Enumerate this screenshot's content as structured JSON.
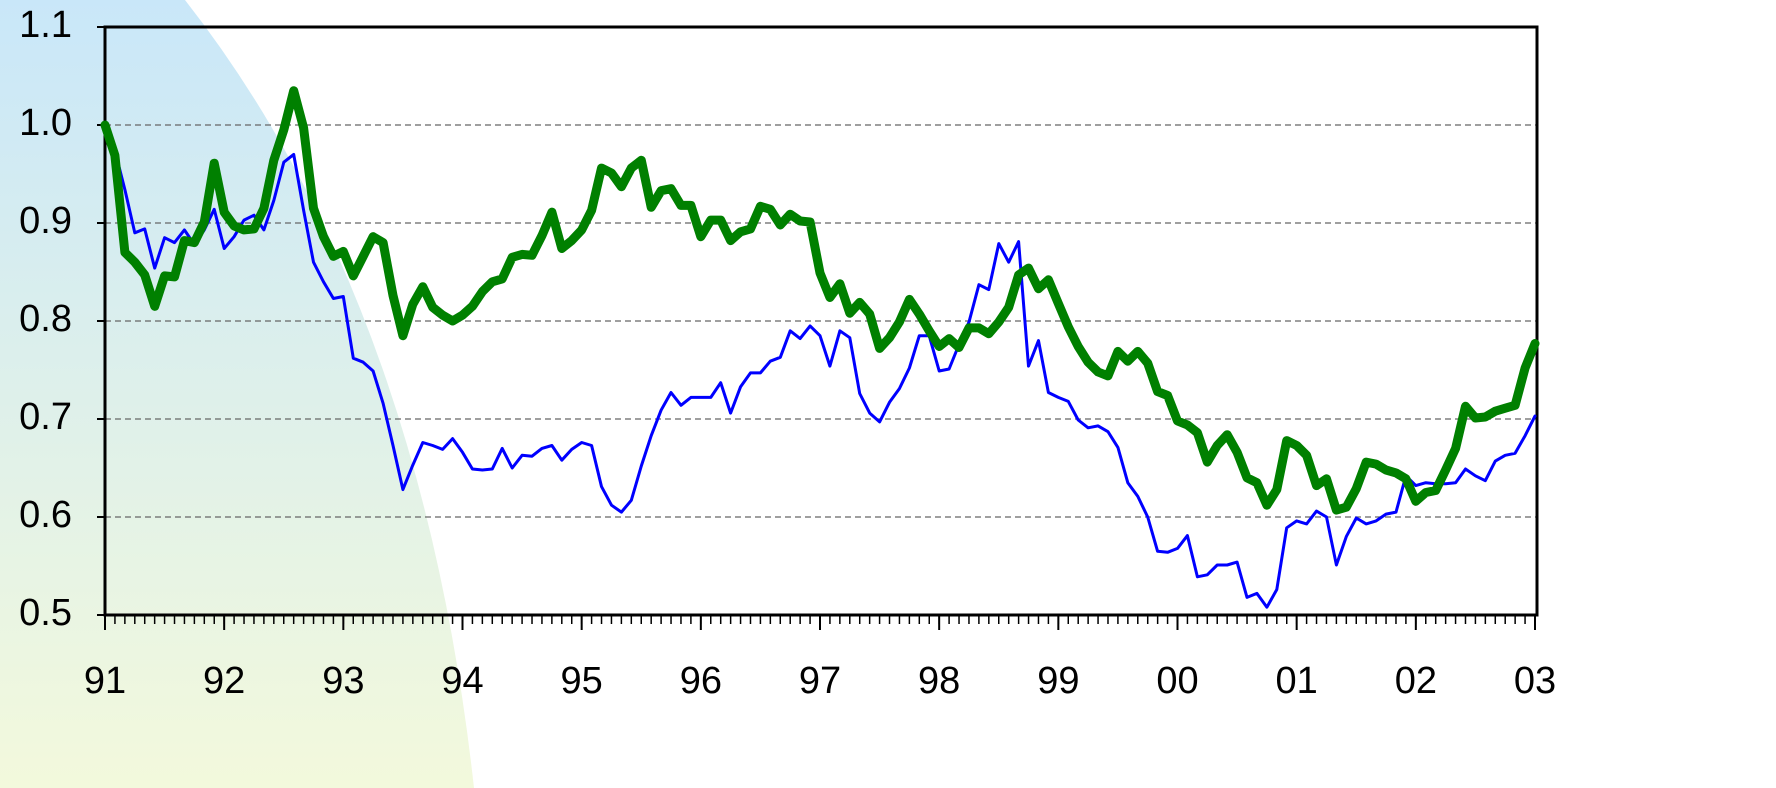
{
  "chart_data": {
    "type": "line",
    "x": [
      0,
      1,
      2,
      3,
      4,
      5,
      6,
      7,
      8,
      9,
      10,
      11,
      12,
      13,
      14,
      15,
      16,
      17,
      18,
      19,
      20,
      21,
      22,
      23,
      24,
      25,
      26,
      27,
      28,
      29,
      30,
      31,
      32,
      33,
      34,
      35,
      36,
      37,
      38,
      39,
      40,
      41,
      42,
      43,
      44,
      45,
      46,
      47,
      48,
      49,
      50,
      51,
      52,
      53,
      54,
      55,
      56,
      57,
      58,
      59,
      60,
      61,
      62,
      63,
      64,
      65,
      66,
      67,
      68,
      69,
      70,
      71,
      72,
      73,
      74,
      75,
      76,
      77,
      78,
      79,
      80,
      81,
      82,
      83,
      84,
      85,
      86,
      87,
      88,
      89,
      90,
      91,
      92,
      93,
      94,
      95,
      96,
      97,
      98,
      99,
      100,
      101,
      102,
      103,
      104,
      105,
      106,
      107,
      108,
      109,
      110,
      111,
      112,
      113,
      114,
      115,
      116,
      117,
      118,
      119,
      120,
      121,
      122,
      123,
      124,
      125,
      126,
      127,
      128,
      129,
      130,
      131,
      132,
      133,
      134,
      135,
      136,
      137,
      138,
      139,
      140,
      141,
      142,
      143,
      144
    ],
    "series": [
      {
        "color": "#0000ff",
        "width": 3,
        "values": [
          1.0,
          0.974,
          0.934,
          0.89,
          0.894,
          0.854,
          0.885,
          0.88,
          0.893,
          0.878,
          0.893,
          0.914,
          0.874,
          0.886,
          0.903,
          0.908,
          0.893,
          0.923,
          0.962,
          0.97,
          0.913,
          0.86,
          0.84,
          0.823,
          0.825,
          0.762,
          0.758,
          0.749,
          0.716,
          0.673,
          0.628,
          0.653,
          0.676,
          0.673,
          0.669,
          0.68,
          0.666,
          0.649,
          0.648,
          0.649,
          0.67,
          0.65,
          0.663,
          0.662,
          0.67,
          0.673,
          0.658,
          0.669,
          0.676,
          0.673,
          0.631,
          0.612,
          0.605,
          0.617,
          0.652,
          0.683,
          0.709,
          0.727,
          0.714,
          0.722,
          0.722,
          0.722,
          0.737,
          0.706,
          0.733,
          0.747,
          0.747,
          0.759,
          0.763,
          0.79,
          0.782,
          0.795,
          0.785,
          0.754,
          0.79,
          0.783,
          0.726,
          0.706,
          0.697,
          0.717,
          0.731,
          0.752,
          0.785,
          0.785,
          0.749,
          0.751,
          0.776,
          0.799,
          0.837,
          0.832,
          0.879,
          0.86,
          0.881,
          0.754,
          0.78,
          0.727,
          0.722,
          0.718,
          0.699,
          0.691,
          0.693,
          0.687,
          0.671,
          0.635,
          0.621,
          0.6,
          0.565,
          0.564,
          0.568,
          0.581,
          0.539,
          0.541,
          0.551,
          0.551,
          0.554,
          0.518,
          0.522,
          0.508,
          0.526,
          0.589,
          0.596,
          0.593,
          0.606,
          0.6,
          0.551,
          0.58,
          0.599,
          0.593,
          0.596,
          0.603,
          0.605,
          0.642,
          0.632,
          0.635,
          0.634,
          0.634,
          0.635,
          0.649,
          0.642,
          0.637,
          0.657,
          0.663,
          0.665,
          0.683,
          0.703
        ]
      },
      {
        "color": "#008000",
        "width": 9,
        "values": [
          1.0,
          0.969,
          0.87,
          0.86,
          0.847,
          0.815,
          0.846,
          0.845,
          0.882,
          0.88,
          0.901,
          0.961,
          0.911,
          0.897,
          0.893,
          0.894,
          0.915,
          0.964,
          0.995,
          1.035,
          0.997,
          0.915,
          0.886,
          0.866,
          0.871,
          0.846,
          0.866,
          0.886,
          0.88,
          0.826,
          0.785,
          0.817,
          0.835,
          0.814,
          0.806,
          0.8,
          0.806,
          0.815,
          0.83,
          0.84,
          0.843,
          0.865,
          0.868,
          0.867,
          0.887,
          0.911,
          0.874,
          0.882,
          0.893,
          0.913,
          0.956,
          0.951,
          0.937,
          0.956,
          0.964,
          0.916,
          0.933,
          0.935,
          0.918,
          0.918,
          0.886,
          0.903,
          0.903,
          0.882,
          0.891,
          0.894,
          0.917,
          0.914,
          0.898,
          0.909,
          0.902,
          0.901,
          0.849,
          0.824,
          0.838,
          0.808,
          0.819,
          0.807,
          0.772,
          0.783,
          0.799,
          0.822,
          0.807,
          0.79,
          0.774,
          0.782,
          0.773,
          0.793,
          0.793,
          0.787,
          0.799,
          0.814,
          0.847,
          0.854,
          0.833,
          0.842,
          0.818,
          0.794,
          0.774,
          0.758,
          0.748,
          0.744,
          0.769,
          0.759,
          0.769,
          0.757,
          0.728,
          0.724,
          0.698,
          0.694,
          0.686,
          0.656,
          0.673,
          0.684,
          0.666,
          0.64,
          0.635,
          0.612,
          0.628,
          0.678,
          0.673,
          0.663,
          0.632,
          0.639,
          0.607,
          0.61,
          0.629,
          0.656,
          0.654,
          0.648,
          0.645,
          0.639,
          0.616,
          0.625,
          0.627,
          0.648,
          0.67,
          0.713,
          0.701,
          0.702,
          0.708,
          0.711,
          0.714,
          0.752,
          0.777
        ]
      }
    ],
    "xlim": [
      0,
      144
    ],
    "xticks": [
      {
        "value": 0,
        "label": "91"
      },
      {
        "value": 12,
        "label": "92"
      },
      {
        "value": 24,
        "label": "93"
      },
      {
        "value": 36,
        "label": "94"
      },
      {
        "value": 48,
        "label": "95"
      },
      {
        "value": 60,
        "label": "96"
      },
      {
        "value": 72,
        "label": "97"
      },
      {
        "value": 84,
        "label": "98"
      },
      {
        "value": 96,
        "label": "99"
      },
      {
        "value": 108,
        "label": "00"
      },
      {
        "value": 120,
        "label": "01"
      },
      {
        "value": 132,
        "label": "02"
      },
      {
        "value": 144,
        "label": "03"
      }
    ],
    "ylim": [
      0.5,
      1.1
    ],
    "yticks": [
      0.5,
      0.6,
      0.7,
      0.8,
      0.9,
      {
        "value": 1,
        "label": "1.0"
      },
      1.1
    ],
    "grid": true
  }
}
